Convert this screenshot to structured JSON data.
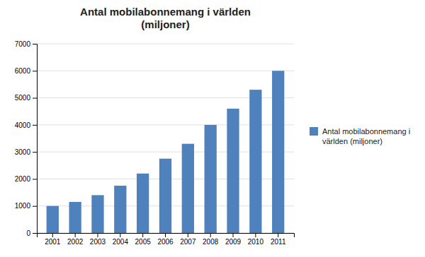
{
  "chart_data": {
    "type": "bar",
    "title": "Antal mobilabonnemang i världen\n(miljoner)",
    "categories": [
      "2001",
      "2002",
      "2003",
      "2004",
      "2005",
      "2006",
      "2007",
      "2008",
      "2009",
      "2010",
      "2011"
    ],
    "series": [
      {
        "name": "Antal mobilabonnemang i\nvärlden (miljoner)",
        "color": "#4F81BD",
        "values": [
          1000,
          1150,
          1400,
          1750,
          2200,
          2750,
          3300,
          4000,
          4600,
          5300,
          6000
        ]
      }
    ],
    "ylim": [
      0,
      7000
    ],
    "yticks": [
      0,
      1000,
      2000,
      3000,
      4000,
      5000,
      6000,
      7000
    ],
    "grid": true,
    "legend": "right"
  }
}
